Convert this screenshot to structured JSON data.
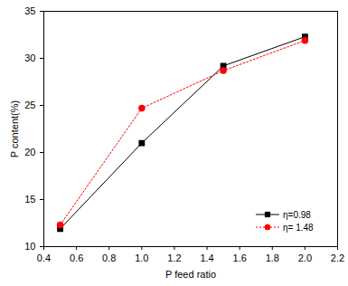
{
  "chart_data": {
    "type": "line",
    "x_label": "P feed ratio",
    "y_label": "P content(%)",
    "x": [
      0.5,
      1.0,
      1.5,
      2.0
    ],
    "series": [
      {
        "name": "η=0.98",
        "color": "#000000",
        "marker": "square",
        "line_style": "solid",
        "values": [
          11.9,
          21.0,
          29.2,
          32.3
        ]
      },
      {
        "name": "η= 1.48",
        "color": "#ff0000",
        "marker": "circle",
        "line_style": "dotted",
        "values": [
          12.3,
          24.7,
          28.7,
          31.9
        ]
      }
    ],
    "xlim": [
      0.4,
      2.2
    ],
    "xticks": [
      0.4,
      0.6,
      0.8,
      {
        "value": 1,
        "label": "1.0"
      },
      1.2,
      1.4,
      1.6,
      1.8,
      {
        "value": 2,
        "label": "2.0"
      },
      2.2
    ],
    "ylim": [
      10,
      35
    ],
    "yticks": [
      10,
      15,
      20,
      25,
      30,
      35
    ],
    "grid": false,
    "legend": "bottom-right"
  }
}
